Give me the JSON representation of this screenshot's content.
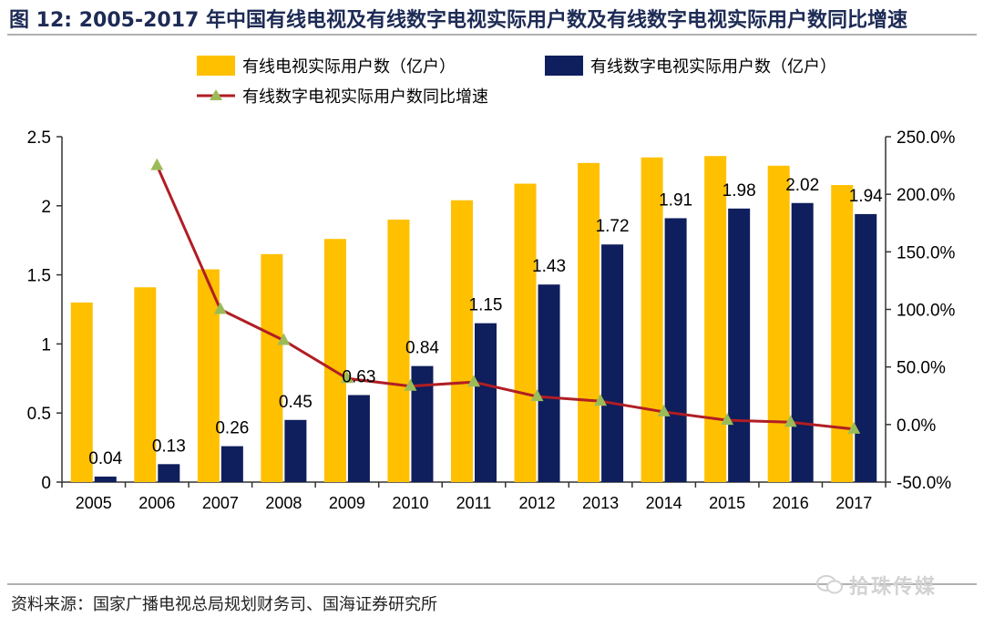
{
  "header": {
    "title": "图 12: 2005-2017 年中国有线电视及有线数字电视实际用户数及有线数字电视实际用户数同比增速"
  },
  "footer": {
    "source": "资料来源：国家广播电视总局规划财务司、国海证券研究所",
    "watermark": "拾珠传媒"
  },
  "colors": {
    "cable_bar": "#FFC000",
    "digital_bar": "#0F1E5C",
    "growth_line": "#B01E24",
    "growth_marker": "#9BBB59"
  },
  "chart_data": {
    "type": "bar",
    "categories": [
      "2005",
      "2006",
      "2007",
      "2008",
      "2009",
      "2010",
      "2011",
      "2012",
      "2013",
      "2014",
      "2015",
      "2016",
      "2017"
    ],
    "series": [
      {
        "name": "有线电视实际用户数（亿户）",
        "kind": "bar",
        "axis": "left",
        "values": [
          1.3,
          1.41,
          1.54,
          1.65,
          1.76,
          1.9,
          2.04,
          2.16,
          2.31,
          2.35,
          2.36,
          2.29,
          2.15
        ]
      },
      {
        "name": "有线数字电视实际用户数（亿户）",
        "kind": "bar",
        "axis": "left",
        "values": [
          0.04,
          0.13,
          0.26,
          0.45,
          0.63,
          0.84,
          1.15,
          1.43,
          1.72,
          1.91,
          1.98,
          2.02,
          1.94
        ],
        "data_labels": [
          "0.04",
          "0.13",
          "0.26",
          "0.45",
          "0.63",
          "0.84",
          "1.15",
          "1.43",
          "1.72",
          "1.91",
          "1.98",
          "2.02",
          "1.94"
        ]
      },
      {
        "name": "有线数字电视实际用户数同比增速",
        "kind": "line",
        "axis": "right",
        "values": [
          null,
          225.0,
          100.0,
          73.1,
          40.0,
          33.3,
          36.9,
          24.3,
          20.3,
          11.0,
          3.7,
          2.0,
          -4.0
        ]
      }
    ],
    "y_left": {
      "ylim": [
        0,
        2.5
      ],
      "ticks": [
        "0",
        "0.5",
        "1",
        "1.5",
        "2",
        "2.5"
      ],
      "values": [
        0,
        0.5,
        1,
        1.5,
        2,
        2.5
      ]
    },
    "y_right": {
      "ylim": [
        -50,
        250
      ],
      "ticks": [
        "-50.0%",
        "0.0%",
        "50.0%",
        "100.0%",
        "150.0%",
        "200.0%",
        "250.0%"
      ],
      "values": [
        -50,
        0,
        50,
        100,
        150,
        200,
        250
      ]
    },
    "legend_position": "top",
    "grid": false
  }
}
